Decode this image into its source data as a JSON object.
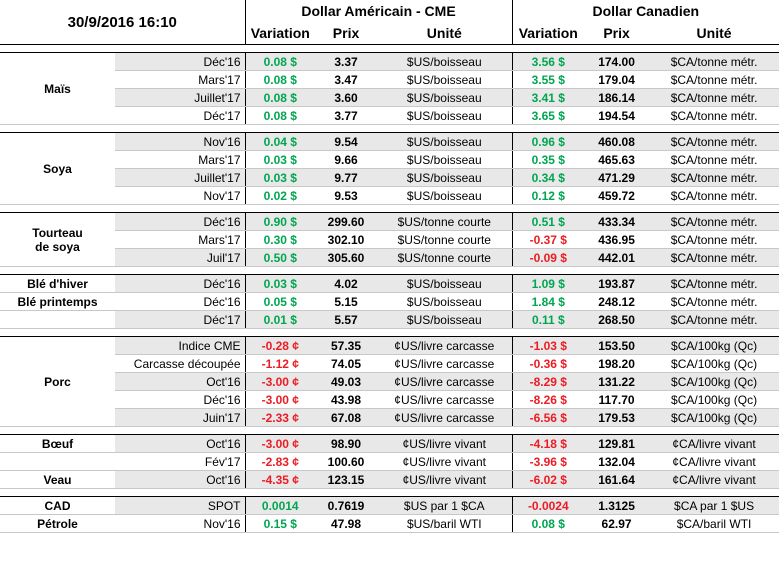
{
  "report": {
    "timestamp": "30/9/2016 16:10",
    "usd_header": "Dollar Américain - CME",
    "cad_header": "Dollar Canadien",
    "col_variation": "Variation",
    "col_prix": "Prix",
    "col_unite": "Unité"
  },
  "colors": {
    "positive": "#00a651",
    "negative": "#ed1c24",
    "stripe": "#e8e8e8"
  },
  "groups": [
    {
      "label_lines": [
        "Maïs"
      ],
      "rows": [
        {
          "contract": "Déc'16",
          "usd_var": "0.08 $",
          "usd_dir": "pos",
          "usd_price": "3.37",
          "usd_unit": "$US/boisseau",
          "cad_var": "3.56 $",
          "cad_dir": "pos",
          "cad_price": "174.00",
          "cad_unit": "$CA/tonne métr."
        },
        {
          "contract": "Mars'17",
          "usd_var": "0.08 $",
          "usd_dir": "pos",
          "usd_price": "3.47",
          "usd_unit": "$US/boisseau",
          "cad_var": "3.55 $",
          "cad_dir": "pos",
          "cad_price": "179.04",
          "cad_unit": "$CA/tonne métr."
        },
        {
          "contract": "Juillet'17",
          "usd_var": "0.08 $",
          "usd_dir": "pos",
          "usd_price": "3.60",
          "usd_unit": "$US/boisseau",
          "cad_var": "3.41 $",
          "cad_dir": "pos",
          "cad_price": "186.14",
          "cad_unit": "$CA/tonne métr."
        },
        {
          "contract": "Déc'17",
          "usd_var": "0.08 $",
          "usd_dir": "pos",
          "usd_price": "3.77",
          "usd_unit": "$US/boisseau",
          "cad_var": "3.65 $",
          "cad_dir": "pos",
          "cad_price": "194.54",
          "cad_unit": "$CA/tonne métr."
        }
      ]
    },
    {
      "label_lines": [
        "Soya"
      ],
      "rows": [
        {
          "contract": "Nov'16",
          "usd_var": "0.04 $",
          "usd_dir": "pos",
          "usd_price": "9.54",
          "usd_unit": "$US/boisseau",
          "cad_var": "0.96 $",
          "cad_dir": "pos",
          "cad_price": "460.08",
          "cad_unit": "$CA/tonne métr."
        },
        {
          "contract": "Mars'17",
          "usd_var": "0.03 $",
          "usd_dir": "pos",
          "usd_price": "9.66",
          "usd_unit": "$US/boisseau",
          "cad_var": "0.35 $",
          "cad_dir": "pos",
          "cad_price": "465.63",
          "cad_unit": "$CA/tonne métr."
        },
        {
          "contract": "Juillet'17",
          "usd_var": "0.03 $",
          "usd_dir": "pos",
          "usd_price": "9.77",
          "usd_unit": "$US/boisseau",
          "cad_var": "0.34 $",
          "cad_dir": "pos",
          "cad_price": "471.29",
          "cad_unit": "$CA/tonne métr."
        },
        {
          "contract": "Nov'17",
          "usd_var": "0.02 $",
          "usd_dir": "pos",
          "usd_price": "9.53",
          "usd_unit": "$US/boisseau",
          "cad_var": "0.12 $",
          "cad_dir": "pos",
          "cad_price": "459.72",
          "cad_unit": "$CA/tonne métr."
        }
      ]
    },
    {
      "label_lines": [
        "Tourteau",
        "de soya"
      ],
      "rows": [
        {
          "contract": "Déc'16",
          "usd_var": "0.90 $",
          "usd_dir": "pos",
          "usd_price": "299.60",
          "usd_unit": "$US/tonne courte",
          "cad_var": "0.51 $",
          "cad_dir": "pos",
          "cad_price": "433.34",
          "cad_unit": "$CA/tonne métr."
        },
        {
          "contract": "Mars'17",
          "usd_var": "0.30 $",
          "usd_dir": "pos",
          "usd_price": "302.10",
          "usd_unit": "$US/tonne courte",
          "cad_var": "-0.37 $",
          "cad_dir": "neg",
          "cad_price": "436.95",
          "cad_unit": "$CA/tonne métr."
        },
        {
          "contract": "Juil'17",
          "usd_var": "0.50 $",
          "usd_dir": "pos",
          "usd_price": "305.60",
          "usd_unit": "$US/tonne courte",
          "cad_var": "-0.09 $",
          "cad_dir": "neg",
          "cad_price": "442.01",
          "cad_unit": "$CA/tonne métr."
        }
      ]
    },
    {
      "label_lines": [
        "Blé d'hiver",
        "Blé printemps",
        ""
      ],
      "per_row_label": true,
      "rows": [
        {
          "contract": "Déc'16",
          "usd_var": "0.03 $",
          "usd_dir": "pos",
          "usd_price": "4.02",
          "usd_unit": "$US/boisseau",
          "cad_var": "1.09 $",
          "cad_dir": "pos",
          "cad_price": "193.87",
          "cad_unit": "$CA/tonne métr."
        },
        {
          "contract": "Déc'16",
          "usd_var": "0.05 $",
          "usd_dir": "pos",
          "usd_price": "5.15",
          "usd_unit": "$US/boisseau",
          "cad_var": "1.84 $",
          "cad_dir": "pos",
          "cad_price": "248.12",
          "cad_unit": "$CA/tonne métr."
        },
        {
          "contract": "Déc'17",
          "usd_var": "0.01 $",
          "usd_dir": "pos",
          "usd_price": "5.57",
          "usd_unit": "$US/boisseau",
          "cad_var": "0.11 $",
          "cad_dir": "pos",
          "cad_price": "268.50",
          "cad_unit": "$CA/tonne métr."
        }
      ]
    },
    {
      "label_lines": [
        "Porc"
      ],
      "rows": [
        {
          "contract": "Indice CME",
          "usd_var": "-0.28 ¢",
          "usd_dir": "neg",
          "usd_price": "57.35",
          "usd_unit": "¢US/livre carcasse",
          "cad_var": "-1.03 $",
          "cad_dir": "neg",
          "cad_price": "153.50",
          "cad_unit": "$CA/100kg (Qc)"
        },
        {
          "contract": "Carcasse découpée",
          "usd_var": "-1.12 ¢",
          "usd_dir": "neg",
          "usd_price": "74.05",
          "usd_unit": "¢US/livre carcasse",
          "cad_var": "-0.36 $",
          "cad_dir": "neg",
          "cad_price": "198.20",
          "cad_unit": "$CA/100kg (Qc)"
        },
        {
          "contract": "Oct'16",
          "usd_var": "-3.00 ¢",
          "usd_dir": "neg",
          "usd_price": "49.03",
          "usd_unit": "¢US/livre carcasse",
          "cad_var": "-8.29 $",
          "cad_dir": "neg",
          "cad_price": "131.22",
          "cad_unit": "$CA/100kg (Qc)"
        },
        {
          "contract": "Déc'16",
          "usd_var": "-3.00 ¢",
          "usd_dir": "neg",
          "usd_price": "43.98",
          "usd_unit": "¢US/livre carcasse",
          "cad_var": "-8.26 $",
          "cad_dir": "neg",
          "cad_price": "117.70",
          "cad_unit": "$CA/100kg (Qc)"
        },
        {
          "contract": "Juin'17",
          "usd_var": "-2.33 ¢",
          "usd_dir": "neg",
          "usd_price": "67.08",
          "usd_unit": "¢US/livre carcasse",
          "cad_var": "-6.56 $",
          "cad_dir": "neg",
          "cad_price": "179.53",
          "cad_unit": "$CA/100kg (Qc)"
        }
      ]
    },
    {
      "label_lines": [
        "Bœuf",
        "",
        "Veau"
      ],
      "per_row_label": true,
      "rows": [
        {
          "contract": "Oct'16",
          "usd_var": "-3.00 ¢",
          "usd_dir": "neg",
          "usd_price": "98.90",
          "usd_unit": "¢US/livre vivant",
          "cad_var": "-4.18 $",
          "cad_dir": "neg",
          "cad_price": "129.81",
          "cad_unit": "¢CA/livre vivant"
        },
        {
          "contract": "Fév'17",
          "usd_var": "-2.83 ¢",
          "usd_dir": "neg",
          "usd_price": "100.60",
          "usd_unit": "¢US/livre vivant",
          "cad_var": "-3.96 $",
          "cad_dir": "neg",
          "cad_price": "132.04",
          "cad_unit": "¢CA/livre vivant"
        },
        {
          "contract": "Oct'16",
          "usd_var": "-4.35 ¢",
          "usd_dir": "neg",
          "usd_price": "123.15",
          "usd_unit": "¢US/livre vivant",
          "cad_var": "-6.02 $",
          "cad_dir": "neg",
          "cad_price": "161.64",
          "cad_unit": "¢CA/livre vivant"
        }
      ]
    },
    {
      "label_lines": [
        "CAD",
        "Pétrole"
      ],
      "per_row_label": true,
      "rows": [
        {
          "contract": "SPOT",
          "usd_var": "0.0014",
          "usd_dir": "pos",
          "usd_price": "0.7619",
          "usd_unit": "$US par 1 $CA",
          "cad_var": "-0.0024",
          "cad_dir": "neg",
          "cad_price": "1.3125",
          "cad_unit": "$CA par 1 $US"
        },
        {
          "contract": "Nov'16",
          "usd_var": "0.15 $",
          "usd_dir": "pos",
          "usd_price": "47.98",
          "usd_unit": "$US/baril WTI",
          "cad_var": "0.08 $",
          "cad_dir": "pos",
          "cad_price": "62.97",
          "cad_unit": "$CA/baril WTI"
        }
      ]
    }
  ]
}
